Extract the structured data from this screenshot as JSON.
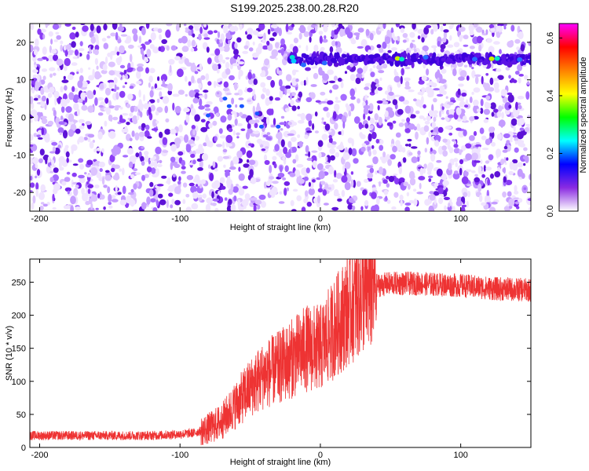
{
  "title": "S199.2025.238.00.28.R20",
  "chart_data": [
    {
      "type": "heatmap",
      "xlabel": "Height of straight line (km)",
      "ylabel": "Frequency (Hz)",
      "xlim": [
        -207,
        150
      ],
      "ylim": [
        -25,
        25
      ],
      "xticks": [
        -200,
        -100,
        0,
        100
      ],
      "xtick_labels": [
        "-200",
        "-100",
        "0",
        "100"
      ],
      "yticks": [
        -20,
        -10,
        0,
        10,
        20
      ],
      "ytick_labels": [
        "-20",
        "-10",
        "0",
        "10",
        "20"
      ],
      "colorbar": {
        "label": "Normalized spectral amplitude",
        "range": [
          0,
          0.65
        ],
        "ticks": [
          0.0,
          0.2,
          0.4,
          0.6
        ],
        "tick_labels": [
          "0.0",
          "0.2",
          "0.4",
          "0.6"
        ],
        "colors": [
          "#ffffff",
          "#8a2be2",
          "#0000ff",
          "#00ffff",
          "#00ff00",
          "#ffff00",
          "#ff8000",
          "#ff0000",
          "#ff00ff"
        ]
      },
      "features": [
        {
          "name": "high-amplitude band",
          "x_range": [
            -22,
            150
          ],
          "frequency_hz": 15.5,
          "peak_amplitude": 0.4
        },
        {
          "name": "weak cluster",
          "x_range": [
            -85,
            -25
          ],
          "frequency_hz": 0,
          "peak_amplitude": 0.25
        }
      ]
    },
    {
      "type": "line",
      "xlabel": "Height of straight line (km)",
      "ylabel": "SNR (10 * v/v)",
      "xlim": [
        -207,
        150
      ],
      "ylim": [
        0,
        285
      ],
      "xticks": [
        -200,
        -100,
        0,
        100
      ],
      "xtick_labels": [
        "-200",
        "-100",
        "0",
        "100"
      ],
      "yticks": [
        0,
        50,
        100,
        150,
        200,
        250
      ],
      "ytick_labels": [
        "0",
        "50",
        "100",
        "150",
        "200",
        "250"
      ],
      "color": "#ee3333",
      "series": [
        {
          "name": "SNR",
          "x": [
            -207,
            -180,
            -150,
            -120,
            -100,
            -90,
            -80,
            -70,
            -60,
            -50,
            -40,
            -30,
            -20,
            -10,
            0,
            10,
            20,
            30,
            40,
            50,
            70,
            100,
            125,
            150
          ],
          "y": [
            18,
            18,
            18,
            18,
            20,
            22,
            28,
            40,
            65,
            90,
            110,
            120,
            135,
            150,
            150,
            180,
            210,
            235,
            245,
            248,
            248,
            245,
            240,
            238
          ]
        }
      ]
    }
  ]
}
